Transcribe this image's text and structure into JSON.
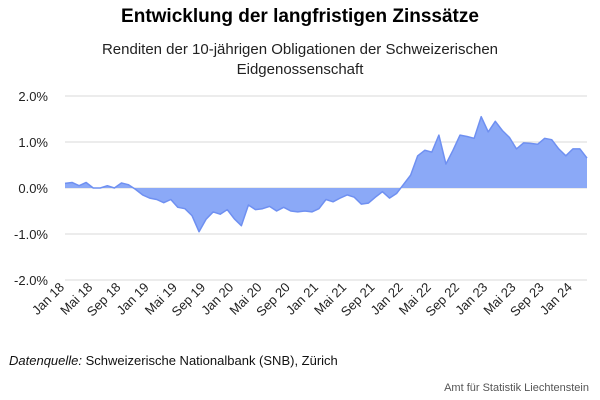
{
  "title": "Entwicklung der langfristigen Zinssätze",
  "subtitle": "Renditen der 10-jährigen Obligationen der Schweizerischen Eidgenossenschaft",
  "source": {
    "label": "Datenquelle:",
    "text": "Schweizerische Nationalbank (SNB), Zürich"
  },
  "publisher": "Amt für Statistik Liechtenstein",
  "colors": {
    "area_fill": "#8ba9f7",
    "area_line": "#6f90f1",
    "gridline": "#d9d9d9"
  },
  "chart_data": {
    "type": "area",
    "title": "Entwicklung der langfristigen Zinssätze",
    "subtitle": "Renditen der 10-jährigen Obligationen der Schweizerischen Eidgenossenschaft",
    "xlabel": "",
    "ylabel": "",
    "ylim": [
      -2.0,
      2.0
    ],
    "y_ticks": [
      2.0,
      1.0,
      0.0,
      -1.0,
      -2.0
    ],
    "y_tick_labels": [
      "2.0%",
      "1.0%",
      "0.0%",
      "-1.0%",
      "-2.0%"
    ],
    "x_tick_labels": [
      "Jan 18",
      "Mai 18",
      "Sep 18",
      "Jan 19",
      "Mai 19",
      "Sep 19",
      "Jan 20",
      "Mai 20",
      "Sep 20",
      "Jan 21",
      "Mai 21",
      "Sep 21",
      "Jan 22",
      "Mai 22",
      "Sep 22",
      "Jan 23",
      "Mai 23",
      "Sep 23",
      "Jan 24"
    ],
    "x_tick_step_months": 4,
    "grid": true,
    "legend": "none",
    "x": [
      "2018-01",
      "2018-02",
      "2018-03",
      "2018-04",
      "2018-05",
      "2018-06",
      "2018-07",
      "2018-08",
      "2018-09",
      "2018-10",
      "2018-11",
      "2018-12",
      "2019-01",
      "2019-02",
      "2019-03",
      "2019-04",
      "2019-05",
      "2019-06",
      "2019-07",
      "2019-08",
      "2019-09",
      "2019-10",
      "2019-11",
      "2019-12",
      "2020-01",
      "2020-02",
      "2020-03",
      "2020-04",
      "2020-05",
      "2020-06",
      "2020-07",
      "2020-08",
      "2020-09",
      "2020-10",
      "2020-11",
      "2020-12",
      "2021-01",
      "2021-02",
      "2021-03",
      "2021-04",
      "2021-05",
      "2021-06",
      "2021-07",
      "2021-08",
      "2021-09",
      "2021-10",
      "2021-11",
      "2021-12",
      "2022-01",
      "2022-02",
      "2022-03",
      "2022-04",
      "2022-05",
      "2022-06",
      "2022-07",
      "2022-08",
      "2022-09",
      "2022-10",
      "2022-11",
      "2022-12",
      "2023-01",
      "2023-02",
      "2023-03",
      "2023-04",
      "2023-05",
      "2023-06",
      "2023-07",
      "2023-08",
      "2023-09",
      "2023-10",
      "2023-11",
      "2023-12",
      "2024-01",
      "2024-02",
      "2024-03"
    ],
    "values": [
      0.1,
      0.12,
      0.05,
      0.12,
      0.0,
      0.0,
      0.05,
      0.0,
      0.11,
      0.07,
      -0.03,
      -0.15,
      -0.22,
      -0.25,
      -0.32,
      -0.25,
      -0.42,
      -0.45,
      -0.6,
      -0.95,
      -0.68,
      -0.52,
      -0.57,
      -0.47,
      -0.67,
      -0.82,
      -0.37,
      -0.47,
      -0.45,
      -0.4,
      -0.5,
      -0.42,
      -0.5,
      -0.52,
      -0.5,
      -0.52,
      -0.45,
      -0.25,
      -0.3,
      -0.22,
      -0.15,
      -0.2,
      -0.35,
      -0.33,
      -0.2,
      -0.08,
      -0.22,
      -0.12,
      0.08,
      0.28,
      0.7,
      0.82,
      0.78,
      1.15,
      0.52,
      0.82,
      1.15,
      1.12,
      1.08,
      1.55,
      1.22,
      1.45,
      1.25,
      1.1,
      0.85,
      0.98,
      0.97,
      0.95,
      1.08,
      1.05,
      0.85,
      0.7,
      0.85,
      0.85,
      0.65
    ]
  }
}
